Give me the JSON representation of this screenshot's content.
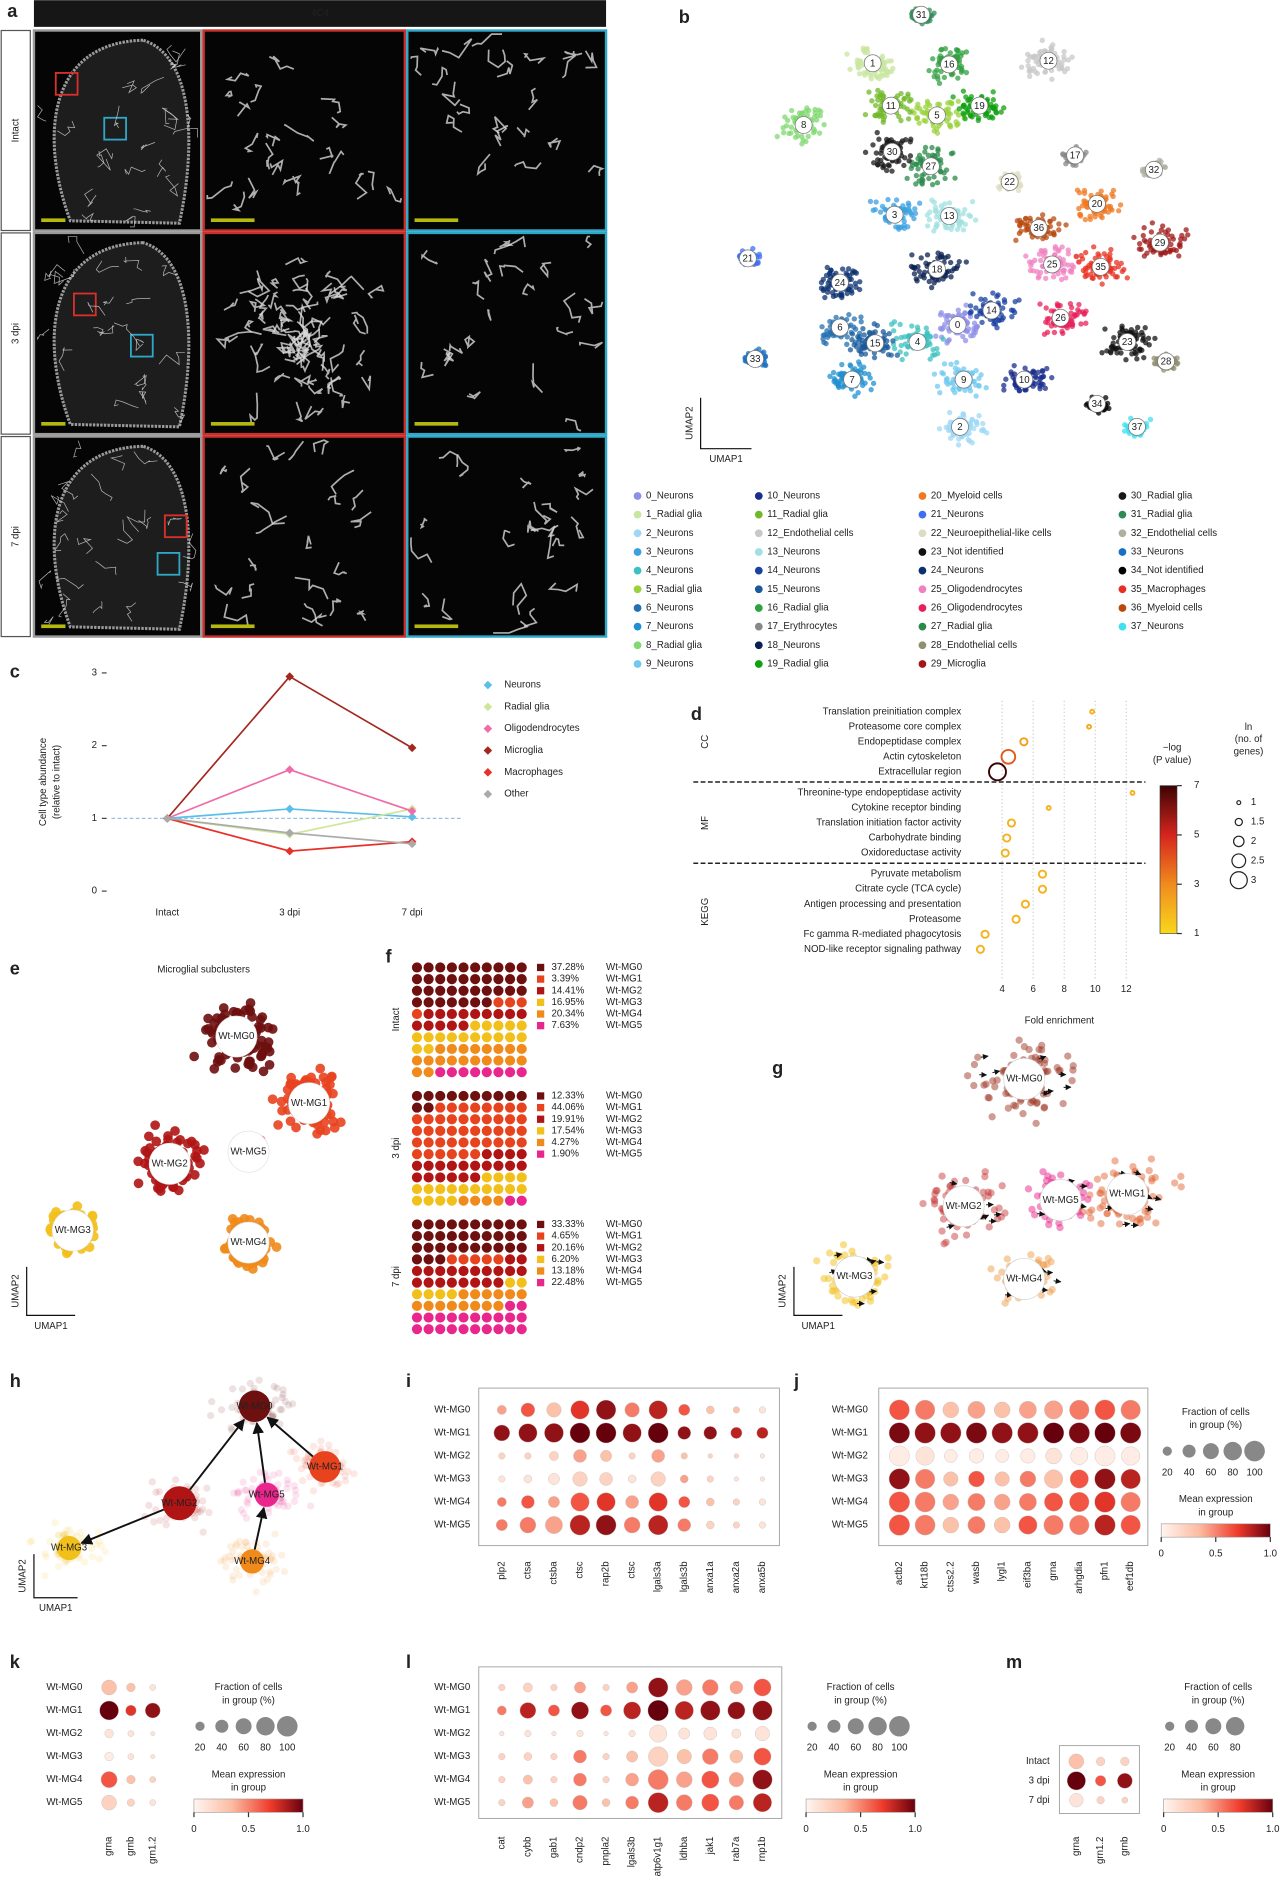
{
  "panel_labels": [
    "a",
    "b",
    "c",
    "d",
    "e",
    "f",
    "g",
    "h",
    "i",
    "j",
    "k",
    "l",
    "m"
  ],
  "subclusters": [
    "Wt-MG0",
    "Wt-MG1",
    "Wt-MG2",
    "Wt-MG3",
    "Wt-MG4",
    "Wt-MG5"
  ],
  "subcluster_colors": [
    "#6e0f10",
    "#e8431f",
    "#b01414",
    "#f2c01a",
    "#f08a1a",
    "#e8268c"
  ],
  "umap_axes": [
    "UMAP1",
    "UMAP2"
  ],
  "a": {
    "marker": "4C4",
    "rows": [
      "Intact",
      "3 dpi",
      "7 dpi"
    ]
  },
  "b": {
    "cluster_ids": [
      "0",
      "1",
      "2",
      "3",
      "4",
      "5",
      "6",
      "7",
      "8",
      "9",
      "10",
      "11",
      "12",
      "13",
      "14",
      "15",
      "16",
      "17",
      "18",
      "19",
      "20",
      "21",
      "22",
      "23",
      "24",
      "25",
      "26",
      "27",
      "28",
      "29",
      "30",
      "31",
      "32",
      "33",
      "34",
      "35",
      "36",
      "37"
    ],
    "legend": [
      "0_Neurons",
      "1_Radial glia",
      "2_Neurons",
      "3_Neurons",
      "4_Neurons",
      "5_Radial glia",
      "6_Neurons",
      "7_Neurons",
      "8_Radial glia",
      "9_Neurons",
      "10_Neurons",
      "11_Radial glia",
      "12_Endothelial cells",
      "13_Neurons",
      "14_Neurons",
      "15_Neurons",
      "16_Radial glia",
      "17_Erythrocytes",
      "18_Neurons",
      "19_Radial glia",
      "20_Myeloid cells",
      "21_Neurons",
      "22_Neuroepithelial-like cells",
      "23_Not identified",
      "24_Neurons",
      "25_Oligodendrocytes",
      "26_Oligodendrocytes",
      "27_Radial glia",
      "28_Endothelial cells",
      "29_Microglia",
      "30_Radial glia",
      "31_Radial glia",
      "32_Endothelial cells",
      "33_Neurons",
      "34_Not identified",
      "35_Macrophages",
      "36_Myeloid cells",
      "37_Neurons"
    ],
    "colors": [
      "#8f8fe8",
      "#c8e6a0",
      "#9fd8f5",
      "#3aa0e0",
      "#3cc0c0",
      "#9ad23c",
      "#2670b0",
      "#2090d0",
      "#7fd870",
      "#70c8f0",
      "#1a2e8c",
      "#70b828",
      "#c8c8c8",
      "#a0e0e0",
      "#1a40a0",
      "#1a5a9a",
      "#30a040",
      "#888888",
      "#0a2050",
      "#10a010",
      "#f07820",
      "#4070f0",
      "#dcdcc0",
      "#111111",
      "#0a3070",
      "#f080c0",
      "#e8205a",
      "#2a8a4a",
      "#909070",
      "#a01818",
      "#181818",
      "#2e8b57",
      "#b0b0a0",
      "#1a70c0",
      "#000000",
      "#e83020",
      "#b84a10",
      "#40e0f0"
    ]
  },
  "c": {
    "type": "line",
    "y_label": [
      "Cell type abundance",
      "(relative to intact)"
    ],
    "categories": [
      "Intact",
      "3 dpi",
      "7 dpi"
    ],
    "ylim": [
      0,
      3
    ],
    "yticks": [
      0,
      1,
      2,
      3
    ],
    "reference_line": 1,
    "series": [
      {
        "name": "Neurons",
        "color": "#5bbfea",
        "values": [
          1,
          1.13,
          1.02
        ]
      },
      {
        "name": "Radial glia",
        "color": "#cfe59a",
        "values": [
          1,
          0.78,
          1.13
        ]
      },
      {
        "name": "Oligodendrocytes",
        "color": "#f06ca8",
        "values": [
          1,
          1.67,
          1.1
        ]
      },
      {
        "name": "Microglia",
        "color": "#a3271f",
        "values": [
          1,
          2.95,
          1.97
        ]
      },
      {
        "name": "Macrophages",
        "color": "#e8302a",
        "values": [
          1,
          0.55,
          0.68
        ]
      },
      {
        "name": "Other",
        "color": "#aaaaaa",
        "values": [
          1,
          0.8,
          0.65
        ]
      }
    ]
  },
  "d": {
    "type": "dot",
    "x_label": "Fold enrichment",
    "xlim": [
      2.3,
      13
    ],
    "xticks": [
      4,
      6,
      8,
      10,
      12
    ],
    "groups": [
      {
        "name": "CC",
        "terms": [
          "Translation preinitiation complex",
          "Proteasome core complex",
          "Endopeptidase complex",
          "Actin cytoskeleton",
          "Extracellular region"
        ],
        "fold": [
          9.8,
          9.6,
          5.4,
          4.4,
          3.7
        ],
        "ln_genes": [
          1,
          1,
          1.5,
          2.5,
          3
        ],
        "neg_log_p": [
          2,
          2.2,
          2.5,
          4,
          7
        ]
      },
      {
        "name": "MF",
        "terms": [
          "Threonine-type endopeptidase activity",
          "Cytokine receptor binding",
          "Translation initiation factor activity",
          "Carbohydrate binding",
          "Oxidoreductase activity"
        ],
        "fold": [
          12.4,
          7,
          4.6,
          4.3,
          4.2
        ],
        "ln_genes": [
          1,
          1,
          1.5,
          1.5,
          1.5
        ],
        "neg_log_p": [
          2,
          2,
          2,
          2,
          2
        ]
      },
      {
        "name": "KEGG",
        "terms": [
          "Pyruvate metabolism",
          "Citrate cycle (TCA cycle)",
          "Antigen processing and presentation",
          "Proteasome",
          "Fc gamma R-mediated phagocytosis",
          "NOD-like receptor signaling pathway"
        ],
        "fold": [
          6.6,
          6.6,
          5.5,
          4.9,
          2.9,
          2.6
        ],
        "ln_genes": [
          1.5,
          1.5,
          1.5,
          1.5,
          1.5,
          1.5
        ],
        "neg_log_p": [
          2,
          2,
          2,
          2,
          2,
          2
        ]
      }
    ],
    "color_title": [
      "−log",
      "(P value)"
    ],
    "color_ticks": [
      1,
      3,
      5,
      7
    ],
    "size_title": [
      "ln",
      "(no. of",
      "genes)"
    ],
    "size_ticks": [
      1,
      1.5,
      2,
      2.5,
      3
    ]
  },
  "e": {
    "title": "Microglial subclusters"
  },
  "f": {
    "type": "waffle",
    "groups": [
      {
        "label": "Intact",
        "values": [
          37.28,
          3.39,
          14.41,
          16.95,
          20.34,
          7.63
        ],
        "value_labels": [
          "37.28%",
          "3.39%",
          "14.41%",
          "16.95%",
          "20.34%",
          "7.63%"
        ]
      },
      {
        "label": "3 dpi",
        "values": [
          12.33,
          44.06,
          19.91,
          17.54,
          4.27,
          1.9
        ],
        "value_labels": [
          "12.33%",
          "44.06%",
          "19.91%",
          "17.54%",
          "4.27%",
          "1.90%"
        ]
      },
      {
        "label": "7 dpi",
        "values": [
          33.33,
          4.65,
          20.16,
          6.2,
          13.18,
          22.48
        ],
        "value_labels": [
          "33.33%",
          "4.65%",
          "20.16%",
          "6.20%",
          "13.18%",
          "22.48%"
        ]
      }
    ]
  },
  "i": {
    "type": "dotplot",
    "rows": [
      "Wt-MG0",
      "Wt-MG1",
      "Wt-MG2",
      "Wt-MG3",
      "Wt-MG4",
      "Wt-MG5"
    ],
    "genes": [
      "plp2",
      "ctsa",
      "ctsba",
      "ctsc",
      "rap2b",
      "ctsc",
      "lgals3a",
      "lgals3b",
      "anxa1a",
      "anxa2a",
      "anxa5b"
    ],
    "fraction": [
      [
        20,
        45,
        50,
        80,
        90,
        50,
        80,
        30,
        15,
        10,
        10
      ],
      [
        60,
        80,
        85,
        95,
        95,
        80,
        95,
        40,
        40,
        30,
        30
      ],
      [
        10,
        10,
        20,
        40,
        30,
        10,
        40,
        10,
        5,
        5,
        5
      ],
      [
        10,
        15,
        30,
        50,
        40,
        15,
        50,
        15,
        10,
        5,
        5
      ],
      [
        20,
        40,
        30,
        80,
        80,
        40,
        80,
        30,
        15,
        10,
        10
      ],
      [
        30,
        60,
        70,
        95,
        95,
        60,
        90,
        40,
        15,
        10,
        10
      ]
    ],
    "expression": [
      [
        0.4,
        0.6,
        0.3,
        0.7,
        0.9,
        0.5,
        0.8,
        0.6,
        0.3,
        0.3,
        0.1
      ],
      [
        0.9,
        0.9,
        0.9,
        1,
        1,
        0.9,
        1,
        0.9,
        0.9,
        0.8,
        0.8
      ],
      [
        0.2,
        0.2,
        0.2,
        0.4,
        0.3,
        0.2,
        0.4,
        0.3,
        0.2,
        0.2,
        0.1
      ],
      [
        0.1,
        0.1,
        0.1,
        0.2,
        0.2,
        0.1,
        0.2,
        0.4,
        0.2,
        0.1,
        0.1
      ],
      [
        0.5,
        0.6,
        0.4,
        0.6,
        0.7,
        0.4,
        0.7,
        0.6,
        0.3,
        0.2,
        0.1
      ],
      [
        0.5,
        0.5,
        0.4,
        0.8,
        0.9,
        0.5,
        0.8,
        0.5,
        0.2,
        0.2,
        0.1
      ]
    ]
  },
  "j": {
    "type": "dotplot",
    "rows": [
      "Wt-MG0",
      "Wt-MG1",
      "Wt-MG2",
      "Wt-MG3",
      "Wt-MG4",
      "Wt-MG5"
    ],
    "genes": [
      "actb2",
      "krt18b",
      "ctss2.2",
      "wasb",
      "lygl1",
      "eif3ba",
      "grna",
      "arhgdia",
      "pfn1",
      "eef1db"
    ],
    "fraction": [
      [
        95,
        90,
        60,
        70,
        60,
        70,
        80,
        90,
        95,
        90
      ],
      [
        100,
        100,
        100,
        100,
        100,
        100,
        100,
        100,
        100,
        100
      ],
      [
        95,
        80,
        40,
        50,
        40,
        50,
        60,
        70,
        95,
        80
      ],
      [
        100,
        90,
        50,
        60,
        50,
        60,
        80,
        80,
        100,
        90
      ],
      [
        100,
        95,
        60,
        70,
        60,
        70,
        80,
        90,
        100,
        90
      ],
      [
        100,
        95,
        60,
        70,
        60,
        80,
        90,
        90,
        100,
        90
      ]
    ],
    "expression": [
      [
        0.6,
        0.5,
        0.3,
        0.4,
        0.3,
        0.4,
        0.4,
        0.5,
        0.6,
        0.5
      ],
      [
        0.95,
        0.9,
        0.9,
        0.95,
        0.9,
        0.9,
        1,
        0.95,
        1,
        0.95
      ],
      [
        0.05,
        0.1,
        0.05,
        0.05,
        0.05,
        0.05,
        0.1,
        0.05,
        0.05,
        0.05
      ],
      [
        0.9,
        0.5,
        0.3,
        0.6,
        0.3,
        0.5,
        0.3,
        0.6,
        0.9,
        0.8
      ],
      [
        0.6,
        0.5,
        0.4,
        0.5,
        0.4,
        0.5,
        0.6,
        0.6,
        0.7,
        0.5
      ],
      [
        0.6,
        0.5,
        0.3,
        0.5,
        0.3,
        0.6,
        0.5,
        0.5,
        0.8,
        0.6
      ]
    ],
    "size_title": [
      "Fraction of cells",
      "in group (%)"
    ],
    "size_ticks": [
      20,
      40,
      60,
      80,
      100
    ],
    "color_title": [
      "Mean expression",
      "in group"
    ],
    "color_ticks": [
      0,
      0.5,
      {
        "value": 1,
        "label": "1.0"
      }
    ]
  },
  "k": {
    "type": "dotplot",
    "rows": [
      "Wt-MG0",
      "Wt-MG1",
      "Wt-MG2",
      "Wt-MG3",
      "Wt-MG4",
      "Wt-MG5"
    ],
    "genes": [
      "grna",
      "grnb",
      "grn1.2"
    ],
    "fraction": [
      [
        60,
        20,
        10
      ],
      [
        95,
        30,
        60
      ],
      [
        20,
        10,
        5
      ],
      [
        20,
        10,
        5
      ],
      [
        70,
        20,
        10
      ],
      [
        60,
        15,
        10
      ]
    ],
    "expression": [
      [
        0.3,
        0.3,
        0.1
      ],
      [
        1,
        0.7,
        0.9
      ],
      [
        0.1,
        0.1,
        0.1
      ],
      [
        0.05,
        0.1,
        0.1
      ],
      [
        0.6,
        0.3,
        0.2
      ],
      [
        0.2,
        0.2,
        0.1
      ]
    ],
    "size_title": [
      "Fraction of cells",
      "in group (%)"
    ],
    "size_ticks": [
      20,
      40,
      60,
      80,
      100
    ],
    "color_title": [
      "Mean expression",
      "in group"
    ],
    "color_ticks": [
      0,
      0.5,
      {
        "value": 1,
        "label": "1.0"
      }
    ]
  },
  "l": {
    "type": "dotplot",
    "rows": [
      "Wt-MG0",
      "Wt-MG1",
      "Wt-MG2",
      "Wt-MG3",
      "Wt-MG4",
      "Wt-MG5"
    ],
    "genes": [
      "cat",
      "cybb",
      "gab1",
      "cndp2",
      "pnpla2",
      "lgals3b",
      "atp6v1g1",
      "ldhba",
      "jak1",
      "rab7a",
      "rnp1b"
    ],
    "fraction": [
      [
        10,
        20,
        10,
        30,
        10,
        30,
        90,
        60,
        60,
        40,
        70
      ],
      [
        20,
        60,
        30,
        70,
        30,
        70,
        100,
        80,
        90,
        70,
        90
      ],
      [
        5,
        10,
        5,
        10,
        5,
        10,
        70,
        30,
        40,
        20,
        50
      ],
      [
        10,
        15,
        10,
        40,
        10,
        30,
        90,
        50,
        60,
        40,
        70
      ],
      [
        10,
        20,
        10,
        40,
        10,
        40,
        95,
        60,
        70,
        50,
        90
      ],
      [
        10,
        30,
        15,
        50,
        15,
        40,
        95,
        60,
        70,
        50,
        80
      ]
    ],
    "expression": [
      [
        0.2,
        0.2,
        0.2,
        0.4,
        0.2,
        0.4,
        0.9,
        0.4,
        0.5,
        0.4,
        0.6
      ],
      [
        0.5,
        0.8,
        0.6,
        0.9,
        0.6,
        0.8,
        1,
        0.8,
        0.9,
        0.9,
        0.9
      ],
      [
        0.1,
        0.1,
        0.1,
        0.1,
        0.1,
        0.1,
        0.1,
        0.1,
        0.1,
        0.1,
        0.1
      ],
      [
        0.2,
        0.2,
        0.2,
        0.5,
        0.2,
        0.3,
        0.2,
        0.3,
        0.5,
        0.3,
        0.6
      ],
      [
        0.2,
        0.3,
        0.2,
        0.5,
        0.2,
        0.4,
        0.5,
        0.4,
        0.6,
        0.4,
        0.9
      ],
      [
        0.2,
        0.4,
        0.3,
        0.5,
        0.3,
        0.5,
        0.8,
        0.5,
        0.6,
        0.5,
        0.8
      ]
    ],
    "size_title": [
      "Fraction of cells",
      "in group (%)"
    ],
    "size_ticks": [
      20,
      40,
      60,
      80,
      100
    ],
    "color_title": [
      "Mean expression",
      "in group"
    ],
    "color_ticks": [
      0,
      0.5,
      {
        "value": 1,
        "label": "1.0"
      }
    ]
  },
  "m": {
    "type": "dotplot",
    "rows": [
      "Intact",
      "3 dpi",
      "7 dpi"
    ],
    "genes": [
      "grna",
      "grn1.2",
      "grnb"
    ],
    "fraction": [
      [
        60,
        20,
        20
      ],
      [
        90,
        30,
        60
      ],
      [
        50,
        15,
        10
      ]
    ],
    "expression": [
      [
        0.3,
        0.2,
        0.2
      ],
      [
        1,
        0.6,
        0.9
      ],
      [
        0.1,
        0.2,
        0.2
      ]
    ],
    "size_title": [
      "Fraction of cells",
      "in group (%)"
    ],
    "size_ticks": [
      20,
      40,
      60,
      80
    ],
    "color_title": [
      "Mean expression",
      "in group"
    ],
    "color_ticks": [
      0,
      0.5,
      {
        "value": 1,
        "label": "1.0"
      }
    ]
  }
}
